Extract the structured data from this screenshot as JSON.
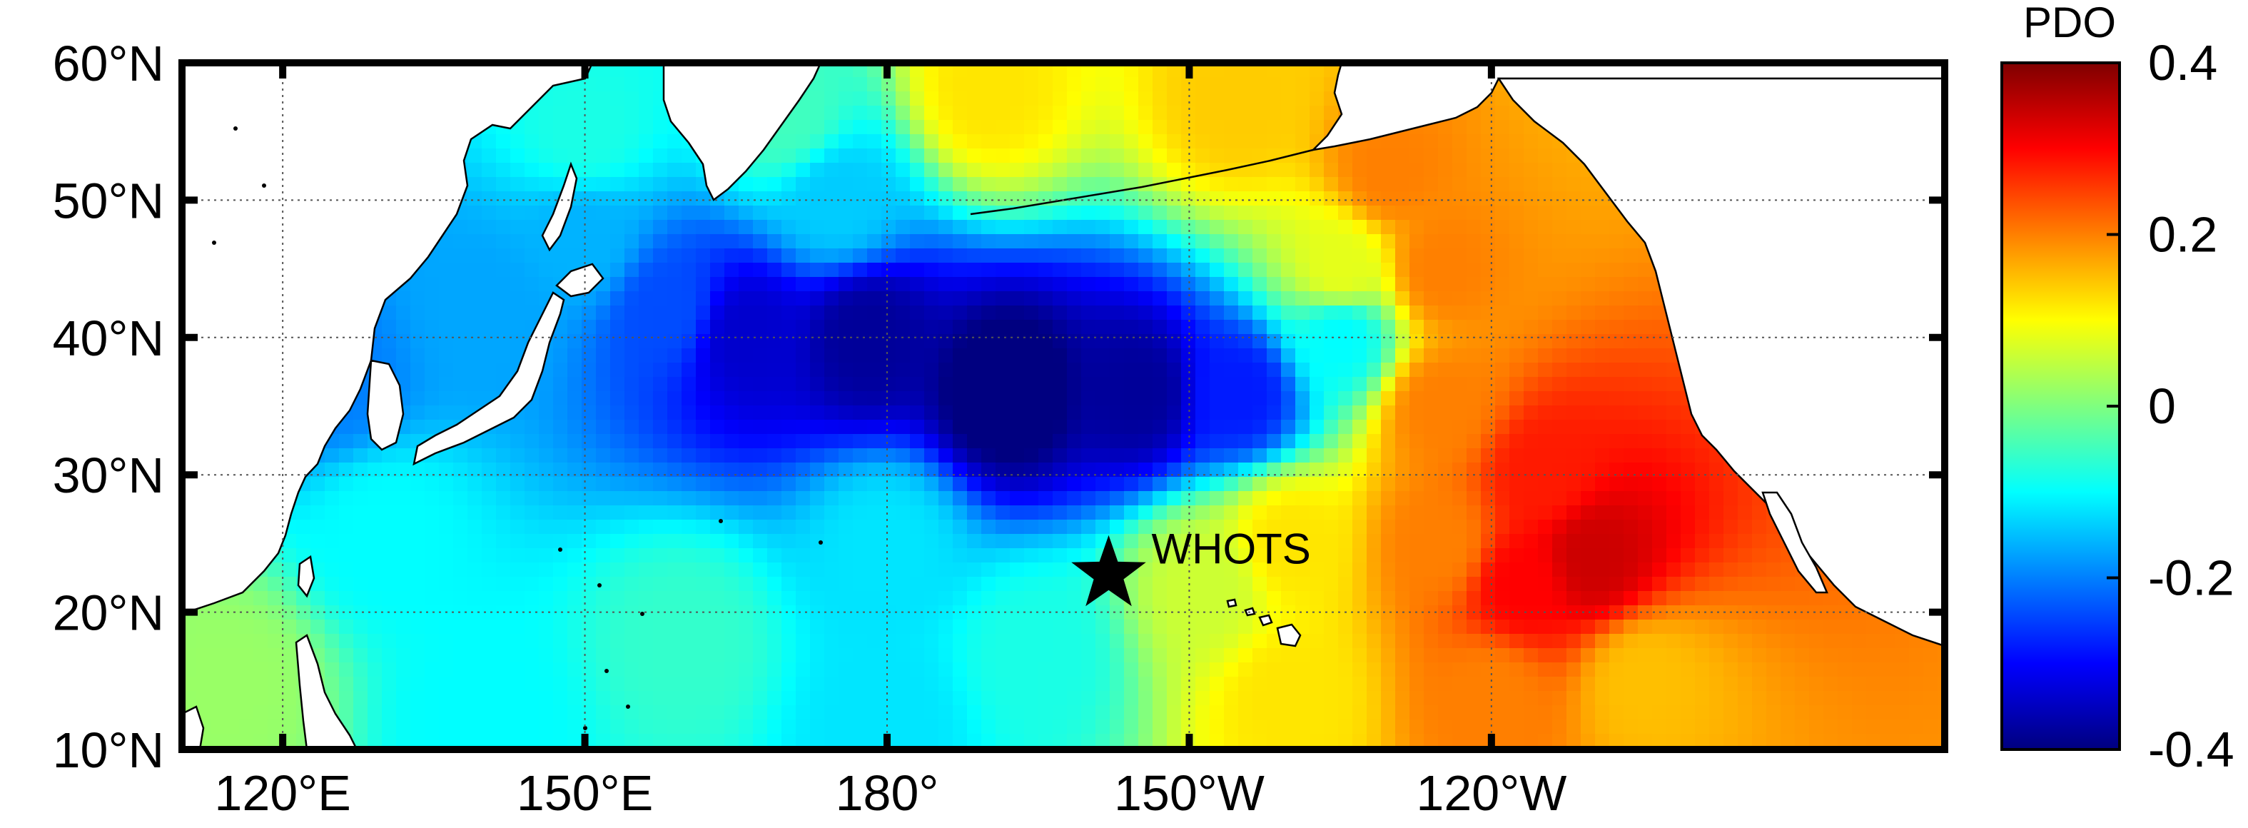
{
  "map": {
    "lon_range": [
      110,
      285
    ],
    "lat_range": [
      10,
      60
    ],
    "lon_ticks": [
      {
        "value": 120,
        "label": "120°E"
      },
      {
        "value": 150,
        "label": "150°E"
      },
      {
        "value": 180,
        "label": "180°"
      },
      {
        "value": 210,
        "label": "150°W"
      },
      {
        "value": 240,
        "label": "120°W"
      }
    ],
    "lat_ticks": [
      {
        "value": 10,
        "label": "10°N"
      },
      {
        "value": 20,
        "label": "20°N"
      },
      {
        "value": 30,
        "label": "30°N"
      },
      {
        "value": 40,
        "label": "40°N"
      },
      {
        "value": 50,
        "label": "50°N"
      },
      {
        "value": 60,
        "label": "60°N"
      }
    ],
    "grid": true,
    "grid_lines_lon": [
      120,
      150,
      180,
      210,
      240
    ],
    "grid_lines_lat": [
      20,
      30,
      40,
      50
    ]
  },
  "colorbar": {
    "title": "PDO",
    "range": [
      -0.4,
      0.4
    ],
    "colormap": "jet",
    "ticks": [
      {
        "value": 0.4,
        "label": "0.4"
      },
      {
        "value": 0.2,
        "label": "0.2"
      },
      {
        "value": 0,
        "label": "0"
      },
      {
        "value": -0.2,
        "label": "-0.2"
      },
      {
        "value": -0.4,
        "label": "-0.4"
      }
    ]
  },
  "marker": {
    "label": "WHOTS",
    "lon": 202,
    "lat": 22.75,
    "symbol": "star-icon"
  },
  "field_anomalies": [
    {
      "lon": 192,
      "lat": 36,
      "value": -0.42
    },
    {
      "lon": 178,
      "lat": 40,
      "value": -0.38
    },
    {
      "lon": 166,
      "lat": 40,
      "value": -0.34
    },
    {
      "lon": 205,
      "lat": 36,
      "value": -0.38
    },
    {
      "lon": 215,
      "lat": 36,
      "value": -0.28
    },
    {
      "lon": 225,
      "lat": 40,
      "value": -0.1
    },
    {
      "lon": 158,
      "lat": 42,
      "value": -0.24
    },
    {
      "lon": 150,
      "lat": 47,
      "value": -0.16
    },
    {
      "lon": 140,
      "lat": 42,
      "value": -0.17
    },
    {
      "lon": 125,
      "lat": 37,
      "value": -0.2
    },
    {
      "lon": 175,
      "lat": 50,
      "value": -0.14
    },
    {
      "lon": 170,
      "lat": 56,
      "value": -0.05
    },
    {
      "lon": 150,
      "lat": 55,
      "value": -0.08
    },
    {
      "lon": 130,
      "lat": 26,
      "value": -0.1
    },
    {
      "lon": 180,
      "lat": 25,
      "value": -0.12
    },
    {
      "lon": 160,
      "lat": 18,
      "value": -0.06
    },
    {
      "lon": 195,
      "lat": 17,
      "value": -0.08
    },
    {
      "lon": 180,
      "lat": 12,
      "value": -0.12
    },
    {
      "lon": 140,
      "lat": 12,
      "value": -0.1
    },
    {
      "lon": 115,
      "lat": 15,
      "value": 0.02
    },
    {
      "lon": 190,
      "lat": 58,
      "value": 0.12
    },
    {
      "lon": 215,
      "lat": 57,
      "value": 0.14
    },
    {
      "lon": 230,
      "lat": 52,
      "value": 0.2
    },
    {
      "lon": 235,
      "lat": 45,
      "value": 0.2
    },
    {
      "lon": 235,
      "lat": 35,
      "value": 0.2
    },
    {
      "lon": 245,
      "lat": 30,
      "value": 0.28
    },
    {
      "lon": 250,
      "lat": 24,
      "value": 0.34
    },
    {
      "lon": 243,
      "lat": 22,
      "value": 0.3
    },
    {
      "lon": 235,
      "lat": 25,
      "value": 0.2
    },
    {
      "lon": 220,
      "lat": 25,
      "value": 0.12
    },
    {
      "lon": 212,
      "lat": 22,
      "value": 0.06
    },
    {
      "lon": 220,
      "lat": 14,
      "value": 0.12
    },
    {
      "lon": 240,
      "lat": 14,
      "value": 0.2
    },
    {
      "lon": 255,
      "lat": 15,
      "value": 0.15
    },
    {
      "lon": 225,
      "lat": 45,
      "value": 0.08
    }
  ]
}
